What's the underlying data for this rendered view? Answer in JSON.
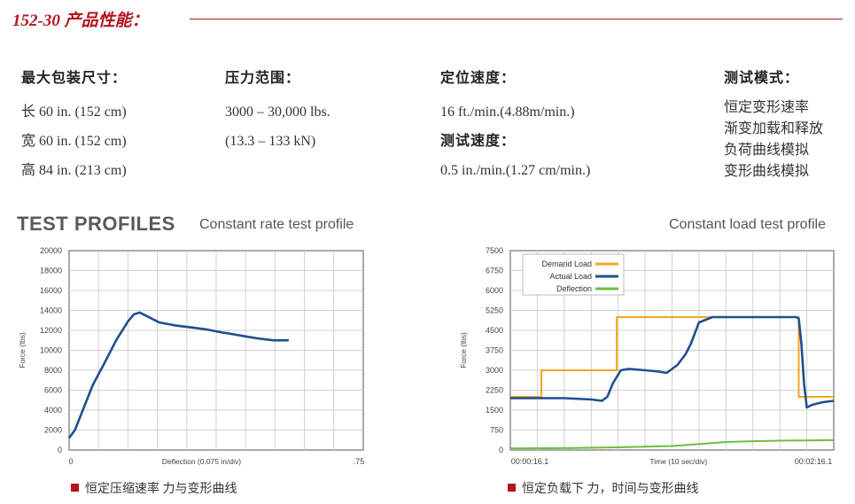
{
  "header": {
    "title": "152-30 产品性能："
  },
  "specs": {
    "col1": {
      "head": "最大包装尺寸：",
      "lines": [
        "长 60 in. (152 cm)",
        "宽 60 in. (152 cm)",
        "高 84 in. (213 cm)"
      ]
    },
    "col2": {
      "head": "压力范围：",
      "lines": [
        "3000 – 30,000 lbs.",
        "(13.3 – 133 kN)"
      ]
    },
    "col3": {
      "head": "定位速度：",
      "line1": "16 ft./min.(4.88m/min.)",
      "head2": "测试速度：",
      "line2": "0.5 in./min.(1.27 cm/min.)"
    },
    "col4": {
      "head": "测试模式：",
      "lines": [
        "恒定变形速率",
        "渐变加载和释放",
        "负荷曲线模拟",
        "变形曲线模拟"
      ]
    }
  },
  "section": {
    "title": "TEST PROFILES"
  },
  "captions": {
    "left": "恒定压缩速率 力与变形曲线",
    "right": "恒定负载下 力，时间与变形曲线"
  },
  "colors": {
    "accent": "#b3141d",
    "series_blue": "#1f4f8f",
    "series_orange": "#f5a623",
    "series_green": "#6cbf3f",
    "grid": "#d0d0d0",
    "frame": "#aaaaaa"
  },
  "chart_data": [
    {
      "type": "line",
      "title": "Constant rate test profile",
      "xlabel": "Deflection (0.075 in/div)",
      "ylabel": "Force (lbs)",
      "ylim": [
        0,
        20000
      ],
      "yticks": [
        "0",
        "2000",
        "4000",
        "6000",
        "8000",
        "10000",
        "12000",
        "14000",
        "16000",
        "18000",
        "20000"
      ],
      "xticks": [
        "0",
        ".75"
      ],
      "xlim": [
        0,
        0.75
      ],
      "grid": true,
      "series": [
        {
          "x": [
            0,
            0.015,
            0.035,
            0.06,
            0.09,
            0.12,
            0.15,
            0.165,
            0.18,
            0.2,
            0.23,
            0.27,
            0.31,
            0.35,
            0.39,
            0.42,
            0.45,
            0.48,
            0.5,
            0.52,
            0.54,
            0.56
          ],
          "y": [
            1200,
            2000,
            4000,
            6500,
            8700,
            11000,
            12900,
            13600,
            13800,
            13400,
            12800,
            12500,
            12300,
            12100,
            11800,
            11600,
            11400,
            11200,
            11100,
            11000,
            11000,
            11000
          ]
        }
      ]
    },
    {
      "type": "line",
      "title": "Constant load test profile",
      "xlabel": "Time (10 sec/div)",
      "ylabel": "Force (lbs)",
      "ylim": [
        0,
        7500
      ],
      "yticks": [
        "0",
        "750",
        "1500",
        "2250",
        "3000",
        "3750",
        "4500",
        "5250",
        "6000",
        "6750",
        "7500"
      ],
      "xticks": [
        "00:00:16.1",
        "00:02:16.1"
      ],
      "xlim": [
        0,
        120
      ],
      "grid": true,
      "legend": "top-left",
      "series": [
        {
          "name": "Demand Load",
          "x": [
            0,
            11.5,
            11.5,
            39.5,
            39.5,
            68,
            68,
            107,
            107,
            120
          ],
          "y": [
            2000,
            2000,
            3000,
            3000,
            5000,
            5000,
            5000,
            5000,
            2000,
            2000
          ]
        },
        {
          "name": "Actual Load",
          "x": [
            0,
            10,
            20,
            30,
            34,
            36,
            38,
            41,
            44,
            50,
            55,
            58,
            62,
            65,
            67,
            70,
            75,
            85,
            100,
            106,
            107,
            108,
            109,
            110,
            112,
            116,
            120
          ],
          "y": [
            1950,
            1950,
            1950,
            1900,
            1850,
            2000,
            2500,
            3000,
            3050,
            3000,
            2950,
            2900,
            3200,
            3600,
            4000,
            4800,
            5000,
            5000,
            5000,
            5000,
            4950,
            4000,
            2500,
            1600,
            1700,
            1800,
            1850
          ]
        },
        {
          "name": "Deflection",
          "x": [
            0,
            20,
            40,
            60,
            70,
            80,
            90,
            100,
            110,
            120
          ],
          "y": [
            60,
            70,
            100,
            150,
            220,
            300,
            330,
            350,
            360,
            370
          ]
        }
      ]
    }
  ]
}
